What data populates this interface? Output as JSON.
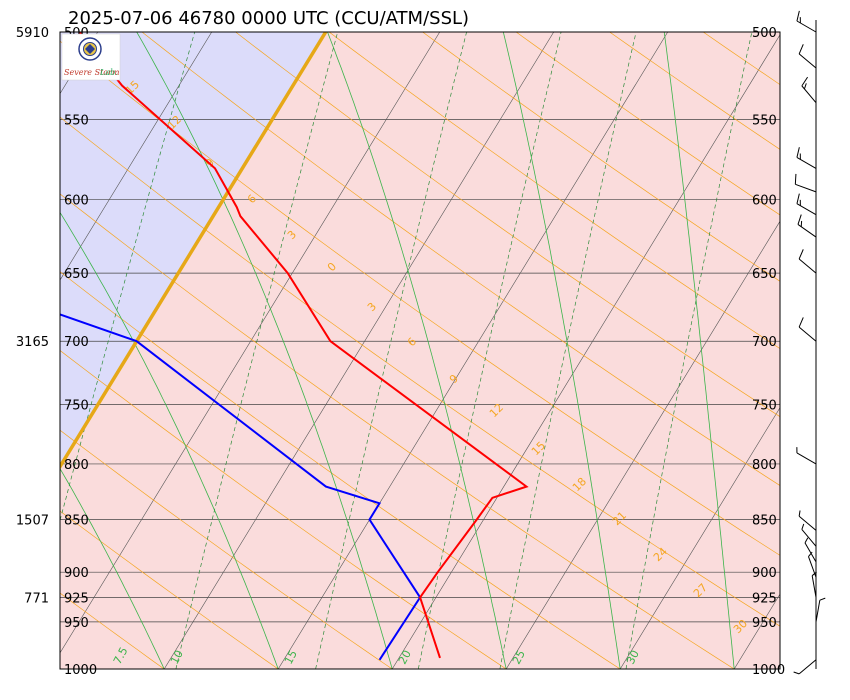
{
  "title": "2025-07-06 46780 0000 UTC (CCU/ATM/SSL)",
  "logo": {
    "text_main": "Severe Storm",
    "text_suffix": "Lab."
  },
  "colors": {
    "temperature": "#ff0000",
    "dewpoint": "#0000ff",
    "zero_isotherm": "#e6a817",
    "cold_fill": "#dcdcfa",
    "warm_fill": "#fadcdc",
    "isotherm": "#555555",
    "dry_adiabat": "#f5a623",
    "moist_adiabat": "#3cb44b",
    "mixing_ratio": "#2e8b3a"
  },
  "chart_data": {
    "type": "skew-t",
    "pressure_axis": {
      "range": [
        1000,
        500
      ],
      "levels": [
        500,
        550,
        600,
        650,
        700,
        750,
        800,
        850,
        900,
        925,
        950,
        1000
      ],
      "tick_labels": [
        "500",
        "550",
        "600",
        "650",
        "700",
        "750",
        "800",
        "850",
        "900",
        "925",
        "950",
        "1000"
      ],
      "scale": "log"
    },
    "height_labels": [
      {
        "pressure": 500,
        "label": "5910"
      },
      {
        "pressure": 700,
        "label": "3165"
      },
      {
        "pressure": 850,
        "label": "1507"
      },
      {
        "pressure": 925,
        "label": "771"
      }
    ],
    "temperature_profile": [
      {
        "p": 988,
        "t": 21.8
      },
      {
        "p": 925,
        "t": 19.3
      },
      {
        "p": 900,
        "t": 19.4
      },
      {
        "p": 850,
        "t": 19.7
      },
      {
        "p": 830,
        "t": 19.8
      },
      {
        "p": 820,
        "t": 21.0
      },
      {
        "p": 700,
        "t": 8.5
      },
      {
        "p": 650,
        "t": 4.8
      },
      {
        "p": 611,
        "t": 1.2
      },
      {
        "p": 605,
        "t": 0.8
      },
      {
        "p": 580,
        "t": -1.2
      },
      {
        "p": 530,
        "t": -7.5
      },
      {
        "p": 500,
        "t": -10.8
      }
    ],
    "dewpoint_profile": [
      {
        "p": 990,
        "t": 19.2
      },
      {
        "p": 925,
        "t": 19.3
      },
      {
        "p": 850,
        "t": 15.0
      },
      {
        "p": 835,
        "t": 15.0
      },
      {
        "p": 820,
        "t": 12.2
      },
      {
        "p": 700,
        "t": 0.0
      },
      {
        "p": 620,
        "t": -17.0
      },
      {
        "p": 610,
        "t": -9.0
      },
      {
        "p": 580,
        "t": -16.0
      },
      {
        "p": 530,
        "t": -15.0
      },
      {
        "p": 505,
        "t": -27.0
      },
      {
        "p": 500,
        "t": -27.0
      }
    ],
    "moist_adiabat_labels": [
      "5",
      "7.5",
      "10",
      "15",
      "20",
      "25",
      "30"
    ],
    "dry_adiabat_labels": [
      "15",
      "12",
      "9",
      "6",
      "3",
      "0",
      "3",
      "6",
      "9",
      "12",
      "15",
      "18",
      "21",
      "24",
      "27",
      "30"
    ],
    "mixing_ratio_labels": [
      "2.5"
    ],
    "wind_barbs": [
      {
        "p": 500,
        "dir": 300,
        "spd": 15
      },
      {
        "p": 520,
        "dir": 310,
        "spd": 10
      },
      {
        "p": 540,
        "dir": 320,
        "spd": 15
      },
      {
        "p": 560,
        "dir": 0,
        "spd": 0
      },
      {
        "p": 580,
        "dir": 300,
        "spd": 15
      },
      {
        "p": 595,
        "dir": 290,
        "spd": 10
      },
      {
        "p": 610,
        "dir": 300,
        "spd": 15
      },
      {
        "p": 625,
        "dir": 305,
        "spd": 15
      },
      {
        "p": 650,
        "dir": 310,
        "spd": 10
      },
      {
        "p": 680,
        "dir": 0,
        "spd": 0
      },
      {
        "p": 700,
        "dir": 310,
        "spd": 10
      },
      {
        "p": 800,
        "dir": 300,
        "spd": 5
      },
      {
        "p": 860,
        "dir": 310,
        "spd": 5
      },
      {
        "p": 875,
        "dir": 320,
        "spd": 5
      },
      {
        "p": 890,
        "dir": 330,
        "spd": 5
      },
      {
        "p": 905,
        "dir": 340,
        "spd": 5
      },
      {
        "p": 925,
        "dir": 350,
        "spd": 5
      },
      {
        "p": 950,
        "dir": 10,
        "spd": 5
      },
      {
        "p": 990,
        "dir": 230,
        "spd": 5
      }
    ]
  }
}
